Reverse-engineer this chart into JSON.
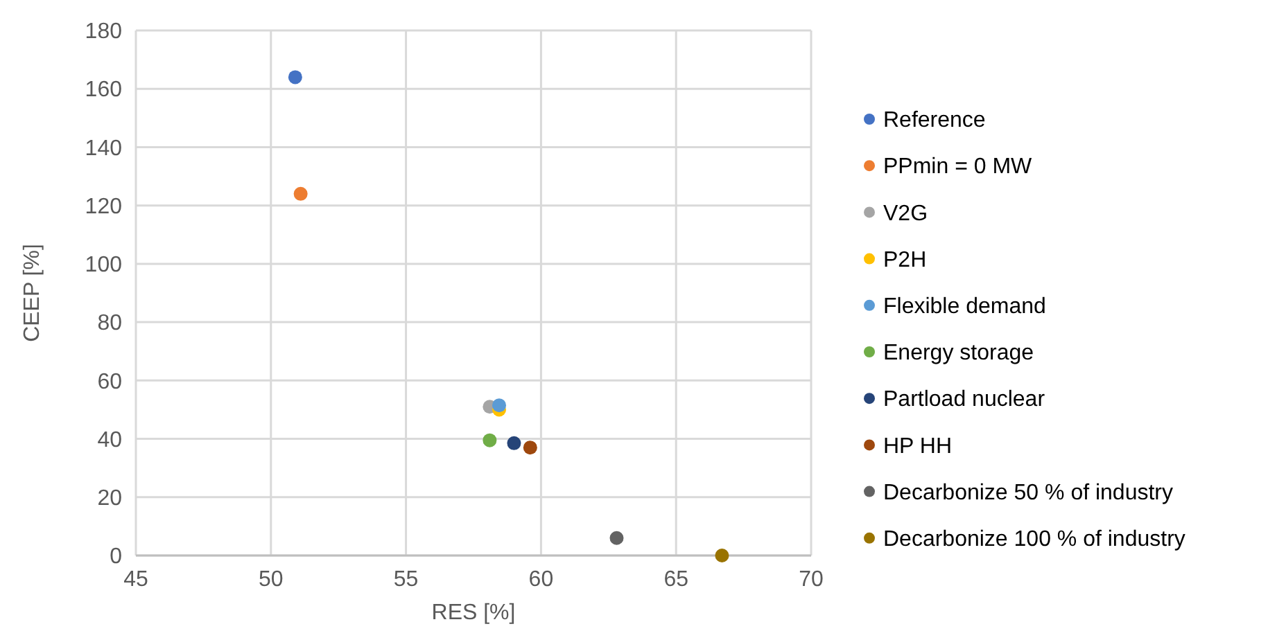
{
  "chart_data": {
    "type": "scatter",
    "xlabel": "RES [%]",
    "ylabel": "CEEP [%]",
    "xlim": [
      45,
      70
    ],
    "xticks": [
      45,
      50,
      55,
      60,
      65,
      70
    ],
    "ylim": [
      0,
      180
    ],
    "yticks": [
      0,
      20,
      40,
      60,
      80,
      100,
      120,
      140,
      160,
      180
    ],
    "grid": true,
    "legend": "right",
    "marker": "circle",
    "series": [
      {
        "name": "Reference",
        "color": "#4472c4",
        "x": [
          50.9
        ],
        "values": [
          164
        ]
      },
      {
        "name": "PPmin = 0 MW",
        "color": "#ed7d31",
        "x": [
          51.1
        ],
        "values": [
          124
        ]
      },
      {
        "name": "V2G",
        "color": "#a5a5a5",
        "x": [
          58.1
        ],
        "values": [
          51
        ]
      },
      {
        "name": "P2H",
        "color": "#ffc000",
        "x": [
          58.45
        ],
        "values": [
          50
        ]
      },
      {
        "name": "Flexible demand",
        "color": "#5b9bd5",
        "x": [
          58.45
        ],
        "values": [
          51.5
        ]
      },
      {
        "name": "Energy storage",
        "color": "#70ad47",
        "x": [
          58.1
        ],
        "values": [
          39.5
        ]
      },
      {
        "name": "Partload nuclear",
        "color": "#264478",
        "x": [
          59.0
        ],
        "values": [
          38.5
        ]
      },
      {
        "name": "HP HH",
        "color": "#9e480e",
        "x": [
          59.6
        ],
        "values": [
          37
        ]
      },
      {
        "name": "Decarbonize 50 % of industry",
        "color": "#636363",
        "x": [
          62.8
        ],
        "values": [
          6
        ]
      },
      {
        "name": "Decarbonize 100 % of industry",
        "color": "#997300",
        "x": [
          66.7
        ],
        "values": [
          0
        ]
      }
    ]
  }
}
